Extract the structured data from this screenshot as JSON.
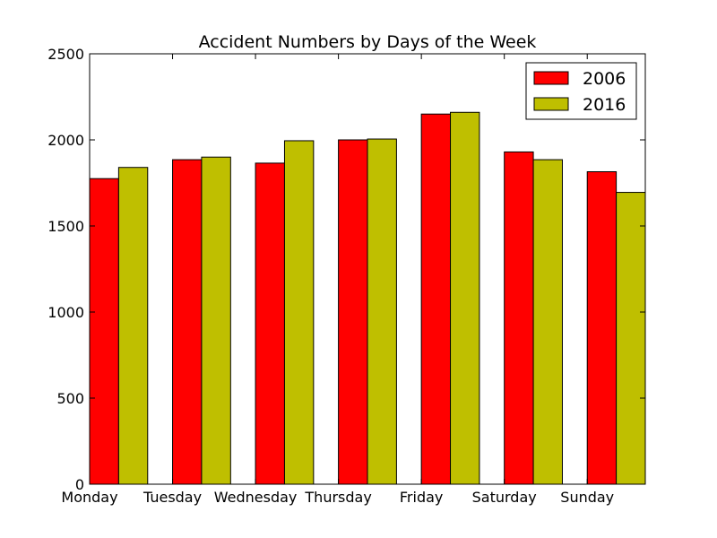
{
  "chart_data": {
    "type": "bar",
    "title": "Accident Numbers by Days of the Week",
    "xlabel": "",
    "ylabel": "",
    "categories": [
      "Monday",
      "Tuesday",
      "Wednesday",
      "Thursday",
      "Friday",
      "Saturday",
      "Sunday"
    ],
    "series": [
      {
        "name": "2006",
        "color": "#ff0000",
        "values": [
          1775,
          1885,
          1865,
          2000,
          2150,
          1930,
          1815
        ]
      },
      {
        "name": "2016",
        "color": "#bfbf00",
        "values": [
          1840,
          1900,
          1995,
          2005,
          2160,
          1885,
          1695
        ]
      }
    ],
    "ylim": [
      0,
      2500
    ],
    "yticks": [
      0,
      500,
      1000,
      1500,
      2000,
      2500
    ],
    "grid": false,
    "legend_position": "top-right"
  }
}
